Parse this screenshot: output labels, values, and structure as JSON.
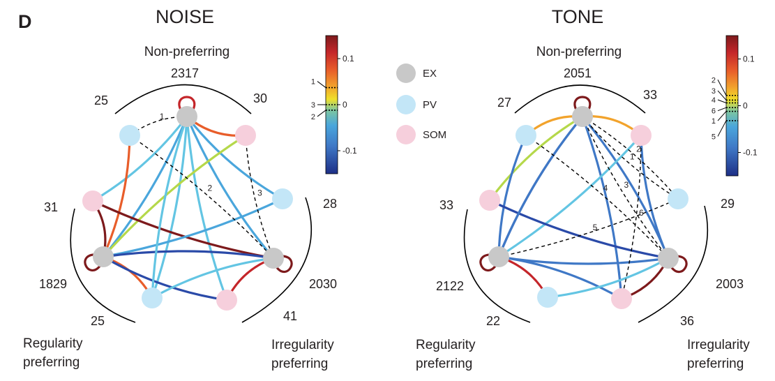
{
  "figure": {
    "panel_letter": "D",
    "legend": [
      {
        "label": "EX",
        "color": "#c8c8c8"
      },
      {
        "label": "PV",
        "color": "#c3e6f7"
      },
      {
        "label": "SOM",
        "color": "#f6cfdc"
      }
    ],
    "groups": {
      "non": "Non-preferring",
      "reg": [
        "Regularity",
        "preferring"
      ],
      "irr": [
        "Irregularity",
        "preferring"
      ]
    },
    "colorbar_scale": {
      "min": -0.15,
      "max": 0.15,
      "ticks": [
        0.1,
        0,
        -0.1
      ],
      "tick_labels": [
        "0.1",
        "0",
        "-0.1"
      ]
    },
    "colors": {
      "ramp": [
        "#1d2f86",
        "#2a4aa8",
        "#3f78c6",
        "#4aa6dc",
        "#63c5e3",
        "#7dc6a0",
        "#b5d84a",
        "#f0e02a",
        "#f2a32c",
        "#e85d2a",
        "#c4262a",
        "#7d1a1c"
      ],
      "dash": "#000000"
    }
  },
  "panels": [
    {
      "id": "noise",
      "title": "NOISE",
      "counts": {
        "non_ex": "2317",
        "non_pv": "25",
        "non_som": "30",
        "reg_ex": "1829",
        "reg_som": "31",
        "reg_pv": "25",
        "irr_ex": "2030",
        "irr_pv": "28",
        "irr_som": "41"
      },
      "edges": [
        {
          "from": "nonEX",
          "to": "nonSOM",
          "value": 0.09
        },
        {
          "from": "nonEX",
          "to": "regSOM",
          "value": -0.03
        },
        {
          "from": "nonEX",
          "to": "irrPV",
          "value": -0.08
        },
        {
          "from": "nonEX",
          "to": "regPV",
          "value": -0.05
        },
        {
          "from": "nonEX",
          "to": "irrSOM",
          "value": -0.04
        },
        {
          "from": "nonEX",
          "to": "regEX",
          "value": -0.07
        },
        {
          "from": "nonEX",
          "to": "irrEX",
          "value": -0.06
        },
        {
          "from": "nonPV",
          "to": "regEX",
          "value": 0.1
        },
        {
          "from": "nonSOM",
          "to": "regEX",
          "value": 0.0
        },
        {
          "from": "regSOM",
          "to": "regEX",
          "value": 0.15
        },
        {
          "from": "regSOM",
          "to": "irrEX",
          "value": 0.14
        },
        {
          "from": "regEX",
          "to": "regPV",
          "value": 0.09
        },
        {
          "from": "regEX",
          "to": "irrPV",
          "value": -0.08
        },
        {
          "from": "regEX",
          "to": "irrEX",
          "value": -0.13
        },
        {
          "from": "regEX",
          "to": "irrSOM",
          "value": -0.11
        },
        {
          "from": "regPV",
          "to": "irrEX",
          "value": -0.03
        },
        {
          "from": "irrEX",
          "to": "irrSOM",
          "value": 0.13
        },
        {
          "from": "regPV",
          "to": "nonEX",
          "value": -0.05
        }
      ],
      "self_loops": [
        {
          "node": "nonEX",
          "value": 0.12
        },
        {
          "node": "regEX",
          "value": 0.14
        },
        {
          "node": "irrEX",
          "value": 0.14
        }
      ],
      "dashed": [
        {
          "from": "nonEX",
          "to": "nonPV",
          "key": "1"
        },
        {
          "from": "nonPV",
          "to": "irrEX",
          "key": "2"
        },
        {
          "from": "nonSOM",
          "to": "irrEX",
          "key": "3"
        }
      ],
      "colorbar_keys": [
        {
          "key": "1",
          "value": 0.037
        },
        {
          "key": "3",
          "value": 0.0
        },
        {
          "key": "2",
          "value": -0.012
        }
      ]
    },
    {
      "id": "tone",
      "title": "TONE",
      "counts": {
        "non_ex": "2051",
        "non_pv": "27",
        "non_som": "33",
        "reg_ex": "2122",
        "reg_som": "33",
        "reg_pv": "22",
        "irr_ex": "2003",
        "irr_pv": "29",
        "irr_som": "36"
      },
      "edges": [
        {
          "from": "nonEX",
          "to": "nonPV",
          "value": 0.07
        },
        {
          "from": "nonEX",
          "to": "nonSOM",
          "value": 0.07
        },
        {
          "from": "nonEX",
          "to": "regSOM",
          "value": 0.02
        },
        {
          "from": "nonEX",
          "to": "irrEX",
          "value": -0.09
        },
        {
          "from": "nonEX",
          "to": "regEX",
          "value": -0.12
        },
        {
          "from": "nonEX",
          "to": "irrSOM",
          "value": -0.1
        },
        {
          "from": "nonPV",
          "to": "regEX",
          "value": -0.1
        },
        {
          "from": "nonSOM",
          "to": "regEX",
          "value": -0.04
        },
        {
          "from": "regSOM",
          "to": "irrEX",
          "value": -0.11
        },
        {
          "from": "regEX",
          "to": "regPV",
          "value": 0.12
        },
        {
          "from": "regEX",
          "to": "irrEX",
          "value": -0.09
        },
        {
          "from": "regEX",
          "to": "irrSOM",
          "value": -0.09
        },
        {
          "from": "regPV",
          "to": "irrEX",
          "value": -0.05
        },
        {
          "from": "irrEX",
          "to": "irrSOM",
          "value": 0.14
        },
        {
          "from": "nonSOM",
          "to": "irrEX",
          "value": -0.1
        },
        {
          "from": "regEX",
          "to": "nonEX",
          "value": -0.09
        }
      ],
      "self_loops": [
        {
          "node": "nonEX",
          "value": 0.14
        },
        {
          "node": "regEX",
          "value": 0.14
        },
        {
          "node": "irrEX",
          "value": 0.14
        }
      ],
      "dashed": [
        {
          "from": "nonEX",
          "to": "irrPV",
          "key": "1"
        },
        {
          "from": "nonEX",
          "to": "irrPV",
          "key": "2"
        },
        {
          "from": "nonEX",
          "to": "irrEX",
          "key": "3"
        },
        {
          "from": "nonPV",
          "to": "irrEX",
          "key": "4"
        },
        {
          "from": "regEX",
          "to": "irrPV",
          "key": "5"
        },
        {
          "from": "nonSOM",
          "to": "irrSOM",
          "key": "6"
        }
      ],
      "colorbar_keys": [
        {
          "key": "2",
          "value": 0.022
        },
        {
          "key": "3",
          "value": 0.012
        },
        {
          "key": "4",
          "value": 0.006
        },
        {
          "key": "6",
          "value": -0.004
        },
        {
          "key": "1",
          "value": -0.012
        },
        {
          "key": "5",
          "value": -0.032
        }
      ]
    }
  ]
}
